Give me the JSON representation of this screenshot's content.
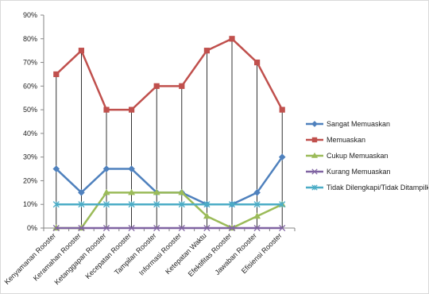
{
  "chart_data": {
    "type": "line",
    "categories": [
      "Kenyamanan Rooster",
      "Keramahan Rooster",
      "Ketanggapan Rooster",
      "Kecepatan Rooster",
      "Tampilan Rooster",
      "Informasi Rooster",
      "Ketepatan Waktu",
      "Efektifitas Rooster",
      "Jawaban Rooster",
      "Efisiensi Rooster"
    ],
    "series": [
      {
        "name": "Sangat Memuaskan",
        "color": "#4f81bd",
        "marker": "diamond",
        "values": [
          25,
          15,
          25,
          25,
          15,
          15,
          10,
          10,
          15,
          30
        ]
      },
      {
        "name": "Memuaskan",
        "color": "#c0504d",
        "marker": "square",
        "values": [
          65,
          75,
          50,
          50,
          60,
          60,
          75,
          80,
          70,
          50
        ]
      },
      {
        "name": "Cukup Memuaskan",
        "color": "#9bbb59",
        "marker": "triangle",
        "values": [
          0,
          0,
          15,
          15,
          15,
          15,
          5,
          0,
          5,
          10
        ]
      },
      {
        "name": "Kurang Memuaskan",
        "color": "#8064a2",
        "marker": "x",
        "values": [
          0,
          0,
          0,
          0,
          0,
          0,
          0,
          0,
          0,
          0
        ]
      },
      {
        "name": "Tidak Dilengkapi/Tidak Ditampilkan",
        "color": "#4bacc6",
        "marker": "star",
        "values": [
          10,
          10,
          10,
          10,
          10,
          10,
          10,
          10,
          10,
          10
        ]
      }
    ],
    "ylim": [
      0,
      90
    ],
    "yticks": [
      0,
      10,
      20,
      30,
      40,
      50,
      60,
      70,
      80,
      90
    ],
    "ytick_format": "%",
    "grid": false,
    "drop_lines": true,
    "legend_position": "right",
    "title": "",
    "xlabel": "",
    "ylabel": ""
  }
}
